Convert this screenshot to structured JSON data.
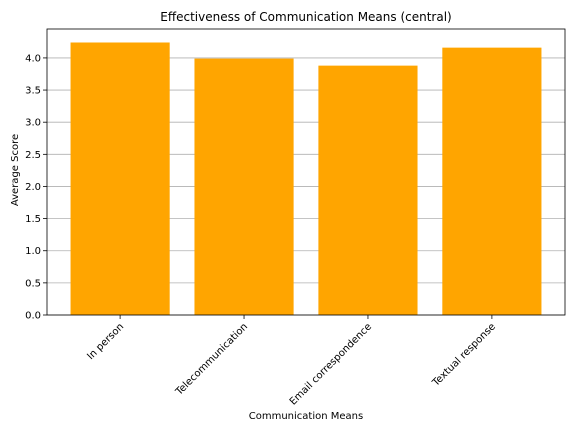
{
  "chart_data": {
    "type": "bar",
    "title": "Effectiveness of Communication Means (central)",
    "xlabel": "Communication Means",
    "ylabel": "Average Score",
    "categories": [
      "In person",
      "Telecommunication",
      "Email correspondence",
      "Textual response"
    ],
    "values": [
      4.24,
      3.99,
      3.88,
      4.16
    ],
    "ylim": [
      0,
      4.45
    ],
    "yticks": [
      "0.0",
      "0.5",
      "1.0",
      "1.5",
      "2.0",
      "2.5",
      "3.0",
      "3.5",
      "4.0"
    ],
    "grid": "horizontal",
    "bar_color": "#FFA500",
    "grid_color": "#b0b0b0"
  }
}
